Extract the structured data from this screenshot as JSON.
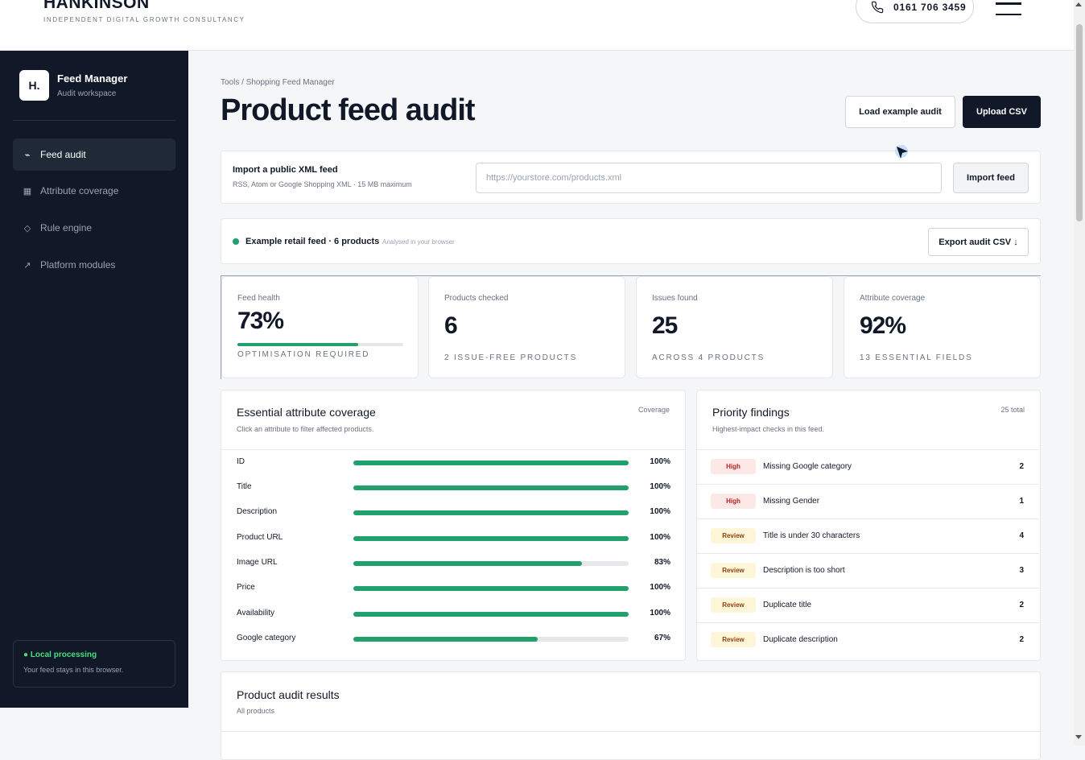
{
  "header": {
    "brand": "HANKINSON",
    "tagline": "INDEPENDENT DIGITAL GROWTH CONSULTANCY",
    "phone": "0161 706 3459"
  },
  "sidebar": {
    "logo": "H.",
    "title": "Feed Manager",
    "subtitle": "Audit workspace",
    "items": [
      {
        "label": "Feed audit",
        "icon": "activity-icon",
        "glyph": "⌁"
      },
      {
        "label": "Attribute coverage",
        "icon": "grid-icon",
        "glyph": "▦"
      },
      {
        "label": "Rule engine",
        "icon": "diamond-icon",
        "glyph": "◇"
      },
      {
        "label": "Platform modules",
        "icon": "arrow-up-right-icon",
        "glyph": "↗"
      }
    ],
    "local": {
      "title": "● Local processing",
      "subtitle": "Your feed stays in this browser."
    }
  },
  "main": {
    "breadcrumb": "Tools / Shopping Feed Manager",
    "title": "Product feed audit",
    "load_example_label": "Load example audit",
    "upload_label": "Upload CSV"
  },
  "xml_import": {
    "title": "Import a public XML feed",
    "subtitle": "RSS, Atom or Google Shopping XML · 15 MB maximum",
    "placeholder": "https://yourstore.com/products.xml",
    "button": "Import feed"
  },
  "status": {
    "text": "Example retail feed · 6 products",
    "sub": "Analysed in your browser",
    "export_label": "Export audit CSV ↓"
  },
  "kpis": [
    {
      "label": "Feed health",
      "value": "73%",
      "note": "Optimisation required",
      "progress": 0.73
    },
    {
      "label": "Products checked",
      "value": "6",
      "note": "2 issue-free products"
    },
    {
      "label": "Issues found",
      "value": "25",
      "note": "Across 4 products"
    },
    {
      "label": "Attribute coverage",
      "value": "92%",
      "note": "13 essential fields"
    }
  ],
  "coverage": {
    "title": "Essential attribute coverage",
    "subtitle": "Click an attribute to filter affected products.",
    "right_label": "Coverage",
    "rows": [
      {
        "name": "ID",
        "pct": "100%",
        "value": 100
      },
      {
        "name": "Title",
        "pct": "100%",
        "value": 100
      },
      {
        "name": "Description",
        "pct": "100%",
        "value": 100
      },
      {
        "name": "Product URL",
        "pct": "100%",
        "value": 100
      },
      {
        "name": "Image URL",
        "pct": "83%",
        "value": 83
      },
      {
        "name": "Price",
        "pct": "100%",
        "value": 100
      },
      {
        "name": "Availability",
        "pct": "100%",
        "value": 100
      },
      {
        "name": "Google category",
        "pct": "67%",
        "value": 67
      }
    ]
  },
  "findings": {
    "title": "Priority findings",
    "subtitle": "Highest-impact checks in this feed.",
    "total": "25 total",
    "rows": [
      {
        "severity": "High",
        "type": "high",
        "label": "Missing Google category",
        "count": "2"
      },
      {
        "severity": "High",
        "type": "high",
        "label": "Missing Gender",
        "count": "1"
      },
      {
        "severity": "Review",
        "type": "review",
        "label": "Title is under 30 characters",
        "count": "4"
      },
      {
        "severity": "Review",
        "type": "review",
        "label": "Description is too short",
        "count": "3"
      },
      {
        "severity": "Review",
        "type": "review",
        "label": "Duplicate title",
        "count": "2"
      },
      {
        "severity": "Review",
        "type": "review",
        "label": "Duplicate description",
        "count": "2"
      }
    ]
  },
  "results": {
    "title": "Product audit results",
    "subtitle": "All products"
  }
}
